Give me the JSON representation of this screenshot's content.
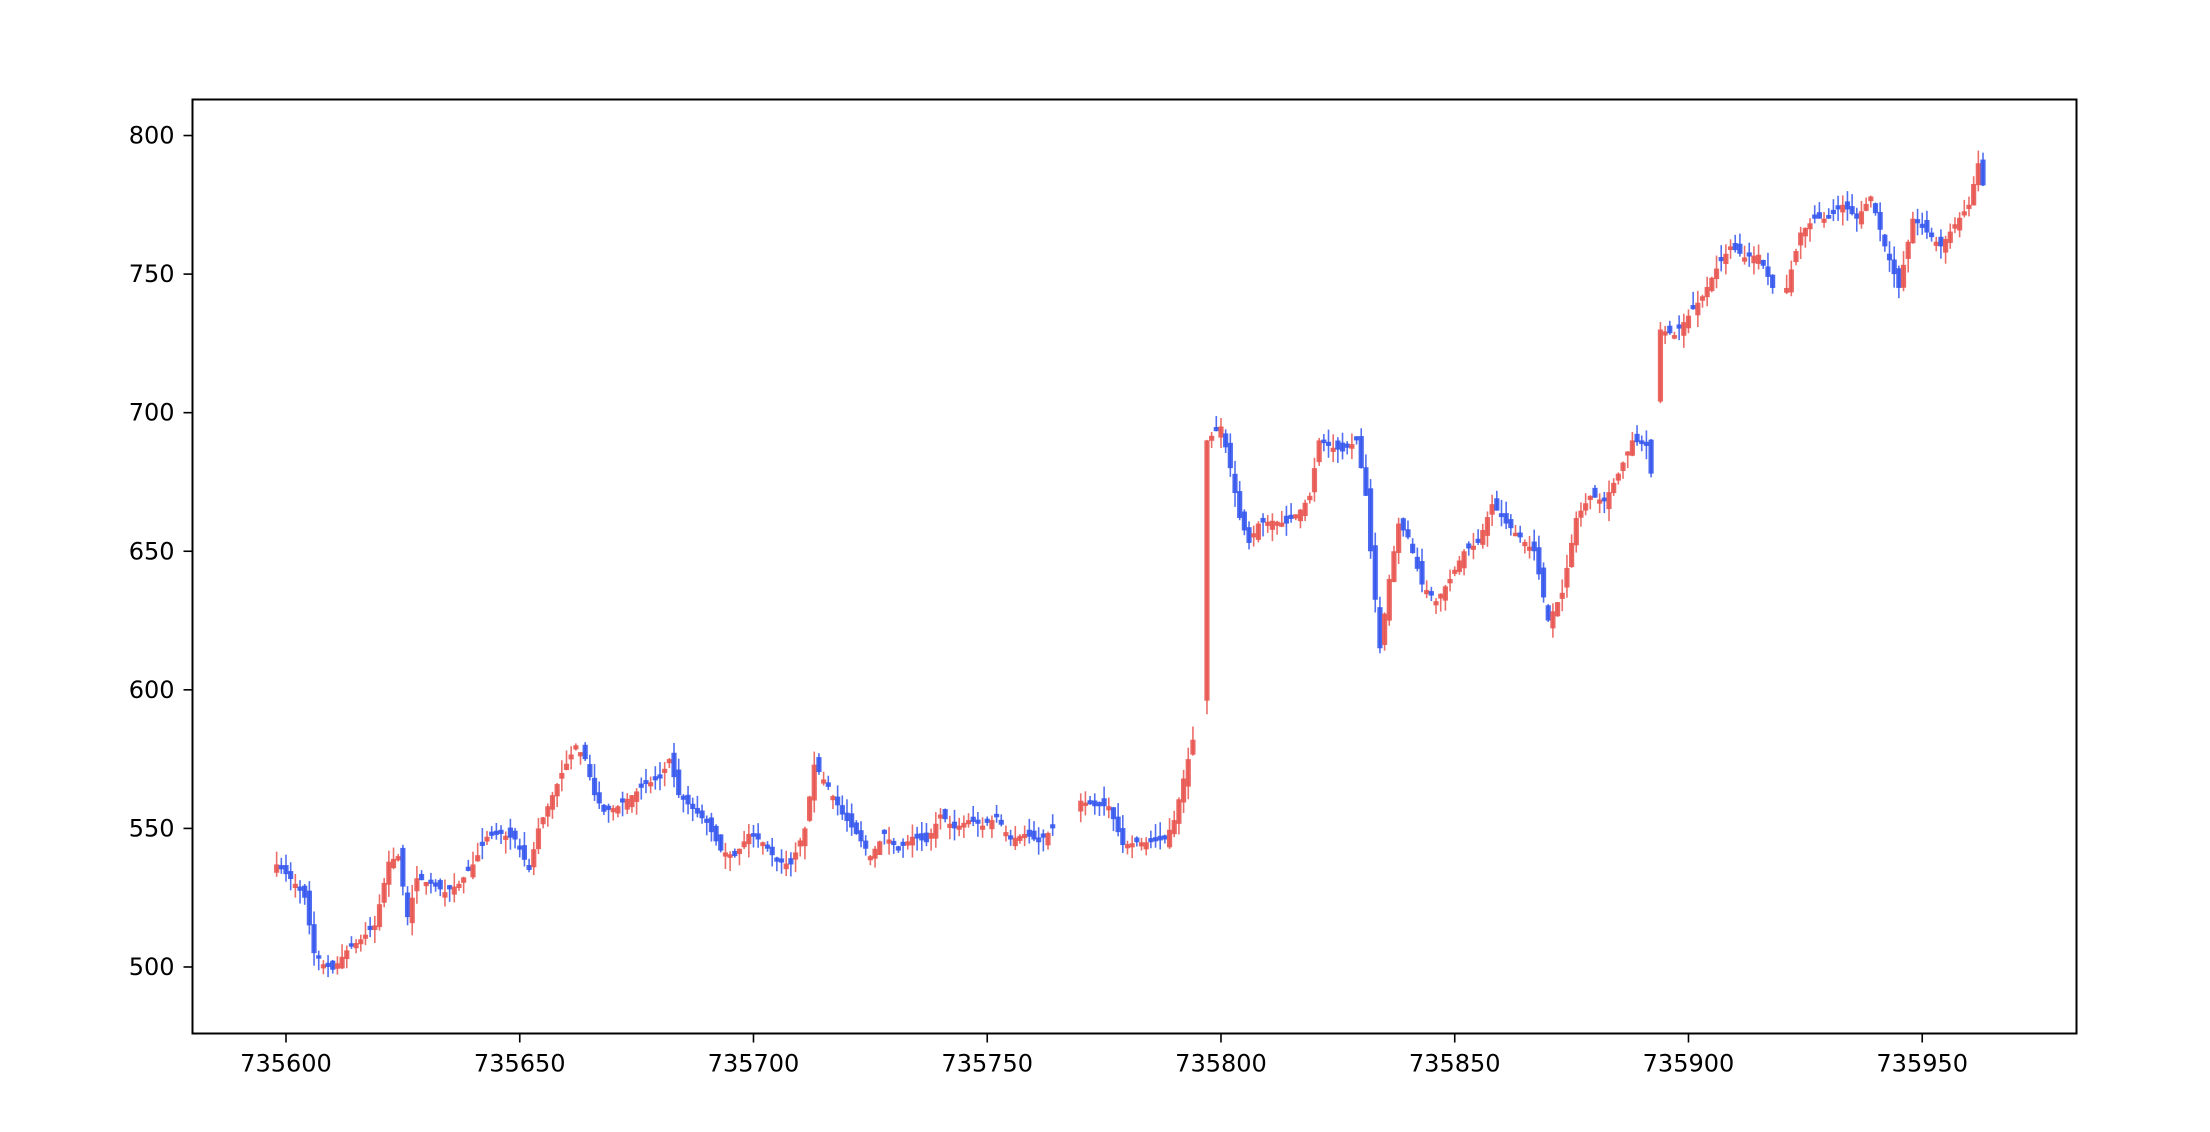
{
  "chart_data": {
    "type": "candlestick",
    "title": "",
    "xlabel": "",
    "ylabel": "",
    "xlim": [
      735580,
      735983
    ],
    "ylim": [
      476,
      813
    ],
    "xticks": [
      735600,
      735650,
      735700,
      735750,
      735800,
      735850,
      735900,
      735950
    ],
    "yticks": [
      500,
      550,
      600,
      650,
      700,
      750,
      800
    ],
    "grid": false,
    "up_color": "#e8544e",
    "down_color": "#3355ee",
    "anchors": [
      [
        735598,
        537
      ],
      [
        735602,
        530
      ],
      [
        735604,
        525
      ],
      [
        735606,
        505
      ],
      [
        735608,
        501
      ],
      [
        735610,
        499
      ],
      [
        735613,
        506
      ],
      [
        735616,
        510
      ],
      [
        735619,
        515
      ],
      [
        735622,
        538
      ],
      [
        735624,
        540
      ],
      [
        735626,
        518
      ],
      [
        735628,
        532
      ],
      [
        735631,
        530
      ],
      [
        735634,
        527
      ],
      [
        735637,
        530
      ],
      [
        735640,
        537
      ],
      [
        735643,
        547
      ],
      [
        735646,
        548
      ],
      [
        735649,
        546
      ],
      [
        735652,
        535
      ],
      [
        735654,
        550
      ],
      [
        735656,
        558
      ],
      [
        735659,
        570
      ],
      [
        735662,
        580
      ],
      [
        735664,
        575
      ],
      [
        735666,
        562
      ],
      [
        735668,
        556
      ],
      [
        735671,
        558
      ],
      [
        735674,
        562
      ],
      [
        735677,
        566
      ],
      [
        735680,
        568
      ],
      [
        735682,
        575
      ],
      [
        735684,
        562
      ],
      [
        735687,
        557
      ],
      [
        735690,
        552
      ],
      [
        735693,
        542
      ],
      [
        735696,
        540
      ],
      [
        735699,
        548
      ],
      [
        735702,
        545
      ],
      [
        735705,
        538
      ],
      [
        735708,
        537
      ],
      [
        735711,
        550
      ],
      [
        735713,
        573
      ],
      [
        735716,
        565
      ],
      [
        735719,
        555
      ],
      [
        735722,
        548
      ],
      [
        735725,
        540
      ],
      [
        735728,
        548
      ],
      [
        735731,
        542
      ],
      [
        735734,
        547
      ],
      [
        735737,
        545
      ],
      [
        735740,
        555
      ],
      [
        735743,
        550
      ],
      [
        735746,
        553
      ],
      [
        735749,
        551
      ],
      [
        735752,
        554
      ],
      [
        735755,
        546
      ],
      [
        735758,
        548
      ],
      [
        735761,
        545
      ],
      [
        735764,
        550
      ],
      [
        735767,
        553
      ],
      [
        735770,
        560
      ],
      [
        735773,
        558
      ],
      [
        735776,
        558
      ],
      [
        735779,
        544
      ],
      [
        735782,
        545
      ],
      [
        735785,
        545
      ],
      [
        735788,
        546
      ],
      [
        735790,
        553
      ],
      [
        735792,
        568
      ],
      [
        735794,
        582
      ],
      [
        735796,
        598
      ],
      [
        735797,
        690
      ],
      [
        735800,
        695
      ],
      [
        735802,
        680
      ],
      [
        735804,
        662
      ],
      [
        735806,
        653
      ],
      [
        735808,
        660
      ],
      [
        735811,
        661
      ],
      [
        735814,
        660
      ],
      [
        735817,
        665
      ],
      [
        735819,
        670
      ],
      [
        735821,
        690
      ],
      [
        735823,
        688
      ],
      [
        735826,
        686
      ],
      [
        735829,
        690
      ],
      [
        735831,
        670
      ],
      [
        735832,
        650
      ],
      [
        735834,
        615
      ],
      [
        735836,
        640
      ],
      [
        735838,
        660
      ],
      [
        735840,
        655
      ],
      [
        735843,
        638
      ],
      [
        735846,
        632
      ],
      [
        735849,
        640
      ],
      [
        735852,
        650
      ],
      [
        735855,
        653
      ],
      [
        735858,
        667
      ],
      [
        735861,
        660
      ],
      [
        735864,
        655
      ],
      [
        735867,
        650
      ],
      [
        735870,
        625
      ],
      [
        735873,
        635
      ],
      [
        735876,
        662
      ],
      [
        735879,
        670
      ],
      [
        735882,
        668
      ],
      [
        735885,
        678
      ],
      [
        735888,
        690
      ],
      [
        735891,
        688
      ],
      [
        735892,
        678
      ],
      [
        735894,
        730
      ],
      [
        735897,
        728
      ],
      [
        735900,
        735
      ],
      [
        735903,
        742
      ],
      [
        735906,
        752
      ],
      [
        735909,
        760
      ],
      [
        735912,
        756
      ],
      [
        735915,
        757
      ],
      [
        735918,
        745
      ],
      [
        735921,
        745
      ],
      [
        735924,
        765
      ],
      [
        735927,
        770
      ],
      [
        735930,
        770
      ],
      [
        735933,
        775
      ],
      [
        735936,
        770
      ],
      [
        735939,
        778
      ],
      [
        735942,
        760
      ],
      [
        735945,
        745
      ],
      [
        735948,
        770
      ],
      [
        735951,
        765
      ],
      [
        735954,
        760
      ],
      [
        735957,
        768
      ],
      [
        735960,
        775
      ],
      [
        735962,
        790
      ],
      [
        735963,
        782
      ]
    ],
    "gaps": [
      [
        735765,
        735769
      ],
      [
        735795,
        735796
      ],
      [
        735893,
        735893
      ],
      [
        735919,
        735920
      ]
    ]
  }
}
